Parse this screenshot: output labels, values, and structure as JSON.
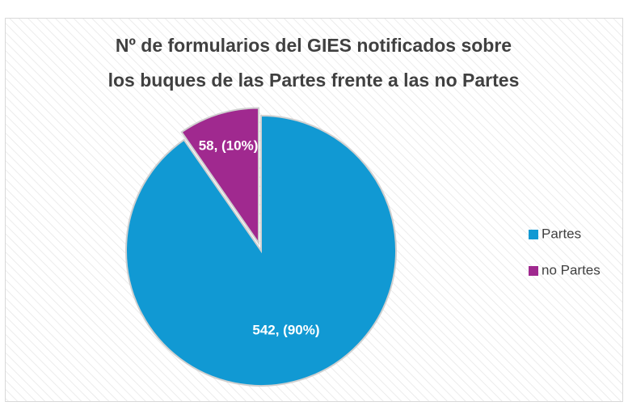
{
  "chart_data": {
    "type": "pie",
    "title": [
      "Nº de formularios del GIES notificados sobre",
      "los buques de las Partes frente a las no Partes"
    ],
    "categories": [
      "Partes",
      "no Partes"
    ],
    "values": [
      542,
      58
    ],
    "value_labels": [
      "542, (90%)",
      "58, (10%)"
    ],
    "colors": [
      "#1199d3",
      "#a0298f"
    ],
    "legend": "right"
  }
}
